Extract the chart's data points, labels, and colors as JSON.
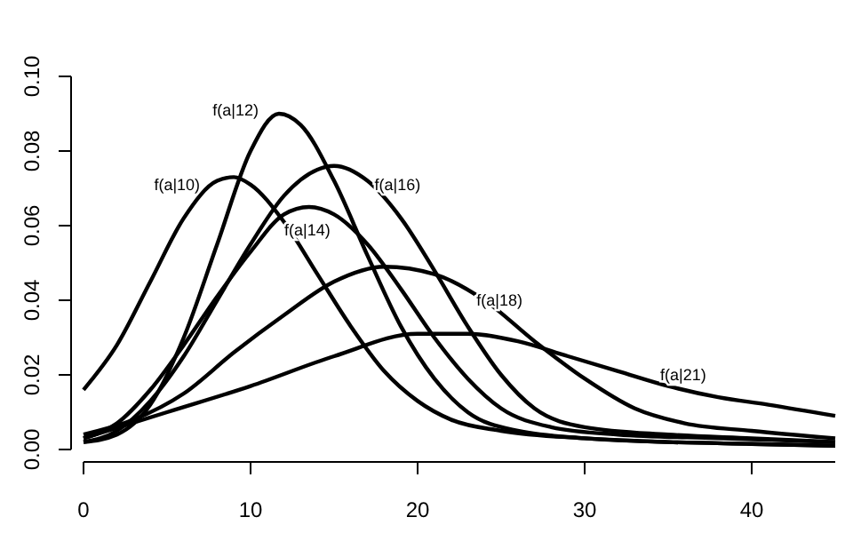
{
  "chart_data": {
    "type": "line",
    "xlim": [
      0,
      45
    ],
    "ylim": [
      0,
      0.1
    ],
    "xticks": [
      0,
      10,
      20,
      30,
      40
    ],
    "yticks": [
      {
        "value": 0,
        "label": "0.00"
      },
      {
        "value": 0.02,
        "label": "0.02"
      },
      {
        "value": 0.04,
        "label": "0.04"
      },
      {
        "value": 0.06,
        "label": "0.06"
      },
      {
        "value": 0.08,
        "label": "0.08"
      },
      {
        "value": 0.1,
        "label": "0.10"
      }
    ],
    "grid": false,
    "legend": false,
    "marker": "none",
    "line_style": "solid",
    "series": [
      {
        "name": "f(a|10)",
        "color": "#000000",
        "x": [
          0,
          2,
          4,
          6,
          8,
          9,
          10,
          12,
          14,
          16,
          18,
          20,
          22,
          25,
          30,
          35,
          40,
          45
        ],
        "values": [
          0.016,
          0.028,
          0.045,
          0.062,
          0.072,
          0.073,
          0.071,
          0.061,
          0.047,
          0.033,
          0.021,
          0.013,
          0.008,
          0.005,
          0.003,
          0.002,
          0.0015,
          0.001
        ]
      },
      {
        "name": "f(a|12)",
        "color": "#000000",
        "x": [
          0,
          2,
          4,
          6,
          8,
          10,
          11.7,
          13,
          15,
          17,
          19,
          21,
          23,
          26,
          30,
          35,
          40,
          45
        ],
        "values": [
          0.002,
          0.004,
          0.012,
          0.03,
          0.055,
          0.08,
          0.09,
          0.087,
          0.072,
          0.052,
          0.033,
          0.019,
          0.01,
          0.005,
          0.003,
          0.002,
          0.0015,
          0.001
        ]
      },
      {
        "name": "f(a|14)",
        "color": "#000000",
        "x": [
          0,
          2,
          4,
          6,
          8,
          10,
          12,
          13.5,
          15,
          17,
          19,
          21,
          23,
          25,
          28,
          32,
          38,
          45
        ],
        "values": [
          0.003,
          0.007,
          0.016,
          0.028,
          0.041,
          0.053,
          0.063,
          0.065,
          0.063,
          0.055,
          0.043,
          0.03,
          0.019,
          0.011,
          0.006,
          0.004,
          0.003,
          0.002
        ]
      },
      {
        "name": "f(a|16)",
        "color": "#000000",
        "x": [
          0,
          2,
          4,
          6,
          8,
          10,
          12,
          14,
          15,
          17,
          19,
          21,
          23,
          25,
          27,
          30,
          35,
          40,
          45
        ],
        "values": [
          0.002,
          0.005,
          0.013,
          0.025,
          0.04,
          0.055,
          0.068,
          0.075,
          0.076,
          0.072,
          0.062,
          0.048,
          0.033,
          0.02,
          0.011,
          0.006,
          0.004,
          0.003,
          0.002
        ]
      },
      {
        "name": "f(a|18)",
        "color": "#000000",
        "x": [
          0,
          3,
          6,
          9,
          12,
          15,
          18,
          21,
          24,
          27,
          30,
          33,
          36,
          40,
          45
        ],
        "values": [
          0.004,
          0.008,
          0.015,
          0.026,
          0.036,
          0.045,
          0.049,
          0.047,
          0.04,
          0.029,
          0.019,
          0.011,
          0.007,
          0.005,
          0.003
        ]
      },
      {
        "name": "f(a|21)",
        "color": "#000000",
        "x": [
          0,
          5,
          10,
          15,
          20,
          23,
          26,
          29,
          32,
          35,
          38,
          41,
          45
        ],
        "values": [
          0.003,
          0.01,
          0.017,
          0.025,
          0.031,
          0.031,
          0.029,
          0.025,
          0.021,
          0.017,
          0.014,
          0.012,
          0.009
        ]
      }
    ]
  }
}
